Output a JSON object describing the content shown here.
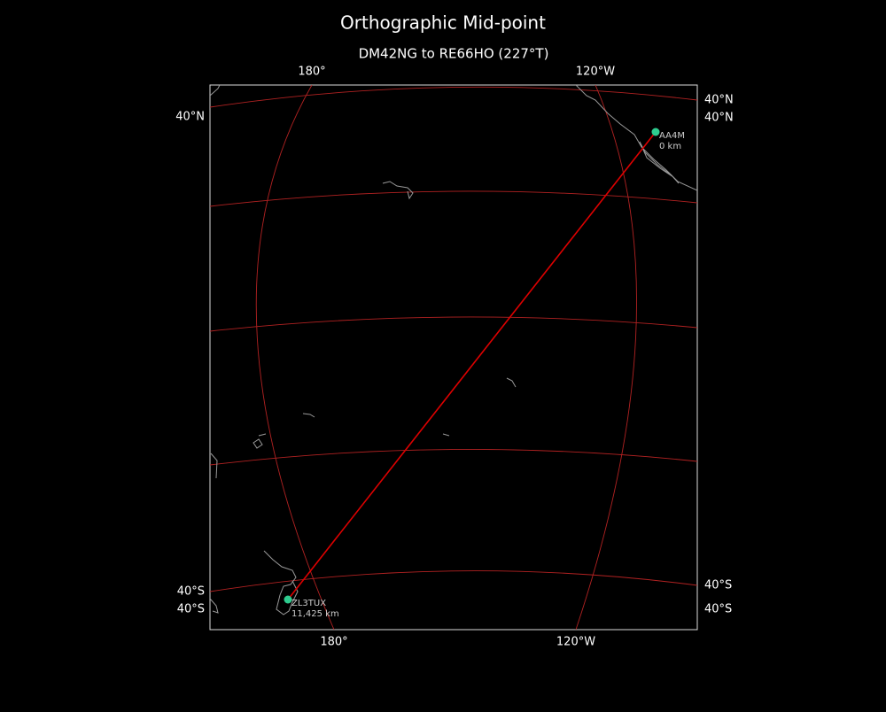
{
  "title": "Orthographic Mid-point",
  "subtitle": "DM42NG to RE66HO (227°T)",
  "grid_labels": {
    "top": [
      "180°",
      "120°W"
    ],
    "bottom": [
      "180°",
      "120°W"
    ],
    "left": [
      "40°N",
      "40°S",
      "40°S"
    ],
    "right": [
      "40°N",
      "40°N",
      "40°S",
      "40°S"
    ]
  },
  "stations": [
    {
      "call": "AA4M",
      "distance": "0 km"
    },
    {
      "call": "ZL3TUX",
      "distance": "11,425 km"
    }
  ]
}
